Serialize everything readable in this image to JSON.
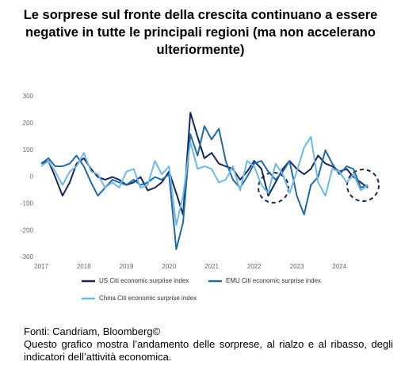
{
  "chart_data": {
    "type": "line",
    "title": "Le sorprese sul fronte della crescita continuano a essere negative in tutte le principali regioni (ma non accelerano ulteriormente)",
    "x": [
      2017,
      2017.17,
      2017.33,
      2017.5,
      2017.67,
      2017.83,
      2018,
      2018.17,
      2018.33,
      2018.5,
      2018.67,
      2018.83,
      2019,
      2019.17,
      2019.33,
      2019.5,
      2019.67,
      2019.83,
      2020,
      2020.17,
      2020.33,
      2020.5,
      2020.67,
      2020.83,
      2021,
      2021.17,
      2021.33,
      2021.5,
      2021.67,
      2021.83,
      2022,
      2022.17,
      2022.33,
      2022.5,
      2022.67,
      2022.83,
      2023,
      2023.17,
      2023.33,
      2023.5,
      2023.67,
      2023.83,
      2024,
      2024.17,
      2024.33,
      2024.5,
      2024.67
    ],
    "series": [
      {
        "name": "US Citi economic surprise index",
        "color": "#14265c",
        "values": [
          50,
          60,
          0,
          -70,
          -20,
          50,
          70,
          30,
          0,
          -10,
          0,
          -10,
          -30,
          -20,
          0,
          -50,
          -40,
          -20,
          20,
          -60,
          -140,
          240,
          150,
          70,
          90,
          50,
          40,
          30,
          -10,
          20,
          60,
          30,
          -70,
          -20,
          30,
          60,
          30,
          10,
          30,
          80,
          50,
          40,
          20,
          30,
          0,
          -20,
          -40
        ]
      },
      {
        "name": "EMU Citi economic surprise index",
        "color": "#1f6aa8",
        "values": [
          50,
          70,
          40,
          40,
          50,
          80,
          40,
          -20,
          -70,
          -40,
          -10,
          -20,
          -30,
          -10,
          -30,
          -20,
          0,
          -10,
          10,
          -270,
          -170,
          160,
          80,
          190,
          140,
          180,
          60,
          -10,
          -40,
          0,
          50,
          60,
          20,
          -10,
          20,
          60,
          -70,
          -140,
          -30,
          0,
          100,
          50,
          10,
          40,
          30,
          -40,
          -30
        ]
      },
      {
        "name": "China Citi economic surprise index",
        "color": "#6db8e8",
        "values": [
          40,
          60,
          20,
          -30,
          20,
          40,
          90,
          20,
          10,
          -40,
          -20,
          -40,
          20,
          30,
          -40,
          -30,
          60,
          10,
          40,
          -180,
          -70,
          130,
          30,
          40,
          30,
          -20,
          -10,
          40,
          -50,
          60,
          40,
          -30,
          -60,
          50,
          10,
          -60,
          20,
          110,
          150,
          -20,
          -70,
          30,
          20,
          -20,
          10,
          -50,
          -30
        ]
      }
    ],
    "xlim": [
      2017,
      2024.85
    ],
    "xticks": [
      2017,
      2018,
      2019,
      2020,
      2021,
      2022,
      2023,
      2024
    ],
    "ylim": [
      -300,
      300
    ],
    "yticks": [
      -300,
      -200,
      -100,
      0,
      100,
      200,
      300
    ],
    "grid": false,
    "source": "Fonti: Candriam, Bloomberg©",
    "note": "Questo grafico mostra l’andamento delle sorprese, al rialzo e al ribasso, degli indicatori dell’attività economica."
  }
}
